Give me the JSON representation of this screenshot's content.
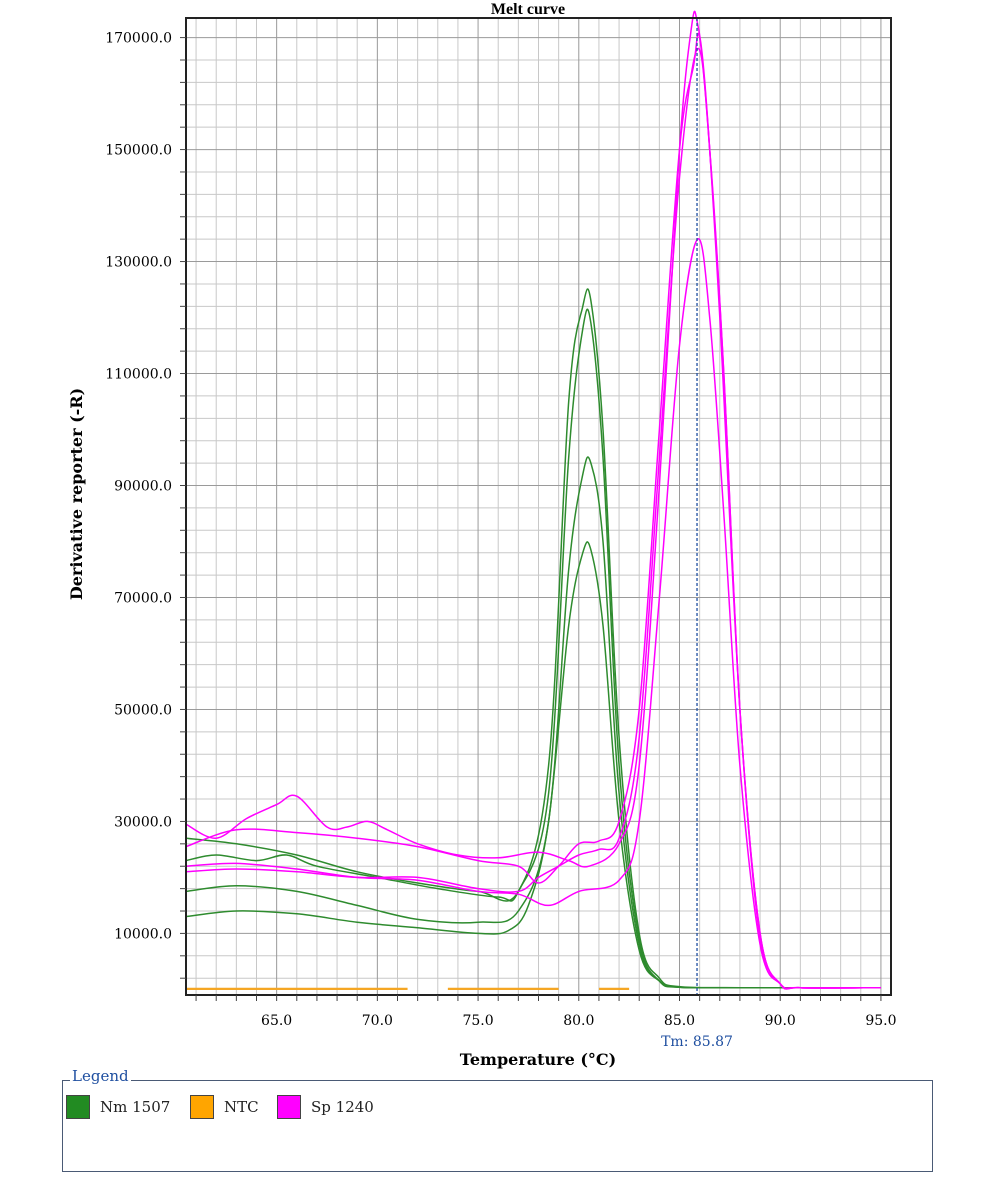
{
  "chart_data": {
    "type": "line",
    "title": "Melt curve",
    "xlabel": "Temperature (°C)",
    "ylabel": "Derivative reporter (-R)",
    "xlim": [
      60.5,
      95.5
    ],
    "ylim": [
      -1000,
      173500
    ],
    "x_ticks": [
      65,
      70,
      75,
      80,
      85,
      90,
      95
    ],
    "x_tick_labels": [
      "65.0",
      "70.0",
      "75.0",
      "80.0",
      "85.0",
      "90.0",
      "95.0"
    ],
    "y_ticks": [
      10000,
      30000,
      50000,
      70000,
      90000,
      110000,
      130000,
      150000,
      170000
    ],
    "y_tick_labels": [
      "10000.0",
      "30000.0",
      "50000.0",
      "70000.0",
      "90000.0",
      "110000.0",
      "130000.0",
      "150000.0",
      "170000.0"
    ],
    "grid": true,
    "threshold_marker": {
      "x": 85.87,
      "label": "Tm: 85.87",
      "color": "#1f4fa0"
    },
    "series": [
      {
        "name": "Nm 1507",
        "color": "#2e8b2e",
        "points": [
          [
            60.5,
            27000
          ],
          [
            63,
            26000
          ],
          [
            66,
            24000
          ],
          [
            69,
            21000
          ],
          [
            72,
            19000
          ],
          [
            75,
            17500
          ],
          [
            77,
            17500
          ],
          [
            78.5,
            40000
          ],
          [
            79.5,
            105000
          ],
          [
            80.2,
            122000
          ],
          [
            80.6,
            123000
          ],
          [
            81.2,
            100000
          ],
          [
            82,
            45000
          ],
          [
            83,
            10000
          ],
          [
            84,
            2000
          ],
          [
            85,
            500
          ],
          [
            88,
            300
          ],
          [
            95,
            300
          ]
        ]
      },
      {
        "name": "Nm 1507",
        "color": "#2e8b2e",
        "points": [
          [
            60.5,
            23000
          ],
          [
            62,
            24000
          ],
          [
            64,
            23000
          ],
          [
            65.5,
            24000
          ],
          [
            67,
            22000
          ],
          [
            70,
            20000
          ],
          [
            73,
            18000
          ],
          [
            76,
            16500
          ],
          [
            77,
            17500
          ],
          [
            78.5,
            35000
          ],
          [
            79.5,
            95000
          ],
          [
            80.2,
            118000
          ],
          [
            80.6,
            119000
          ],
          [
            81.2,
            95000
          ],
          [
            82,
            40000
          ],
          [
            83,
            9000
          ],
          [
            84,
            1500
          ],
          [
            85,
            400
          ],
          [
            88,
            300
          ],
          [
            95,
            300
          ]
        ]
      },
      {
        "name": "Nm 1507",
        "color": "#2e8b2e",
        "points": [
          [
            60.5,
            17500
          ],
          [
            63,
            18500
          ],
          [
            66,
            17500
          ],
          [
            69,
            15000
          ],
          [
            72,
            12500
          ],
          [
            75,
            12000
          ],
          [
            77,
            14000
          ],
          [
            78.5,
            30000
          ],
          [
            79.5,
            75000
          ],
          [
            80.2,
            92000
          ],
          [
            80.6,
            94000
          ],
          [
            81.2,
            80000
          ],
          [
            82,
            35000
          ],
          [
            83,
            8000
          ],
          [
            84,
            1500
          ],
          [
            85,
            400
          ],
          [
            88,
            300
          ],
          [
            95,
            300
          ]
        ]
      },
      {
        "name": "Nm 1507",
        "color": "#2e8b2e",
        "points": [
          [
            60.5,
            13000
          ],
          [
            63,
            14000
          ],
          [
            66,
            13500
          ],
          [
            69,
            12000
          ],
          [
            72,
            11000
          ],
          [
            75,
            10000
          ],
          [
            76.5,
            10500
          ],
          [
            77.5,
            15000
          ],
          [
            78.5,
            30000
          ],
          [
            79.5,
            65000
          ],
          [
            80.2,
            78000
          ],
          [
            80.6,
            78500
          ],
          [
            81.2,
            65000
          ],
          [
            82,
            30000
          ],
          [
            83,
            7000
          ],
          [
            84,
            1500
          ],
          [
            85,
            400
          ],
          [
            88,
            300
          ],
          [
            95,
            300
          ]
        ]
      },
      {
        "name": "NTC",
        "color": "#f5a623",
        "points": [
          [
            60.5,
            100
          ],
          [
            95,
            100
          ]
        ]
      },
      {
        "name": "Sp 1240",
        "color": "#ff00ff",
        "points": [
          [
            60.5,
            29500
          ],
          [
            62,
            27000
          ],
          [
            63.5,
            30500
          ],
          [
            65,
            33000
          ],
          [
            66,
            34500
          ],
          [
            67.5,
            29000
          ],
          [
            68.5,
            29000
          ],
          [
            69.5,
            30000
          ],
          [
            70.5,
            28500
          ],
          [
            72,
            26000
          ],
          [
            74,
            24000
          ],
          [
            76,
            23500
          ],
          [
            78,
            24500
          ],
          [
            79.5,
            23000
          ],
          [
            80.5,
            22000
          ],
          [
            82,
            26000
          ],
          [
            83,
            40000
          ],
          [
            84,
            90000
          ],
          [
            85,
            150000
          ],
          [
            85.6,
            172000
          ],
          [
            85.87,
            173000
          ],
          [
            86.3,
            160000
          ],
          [
            87,
            120000
          ],
          [
            88,
            50000
          ],
          [
            89,
            10000
          ],
          [
            90,
            1000
          ],
          [
            91,
            300
          ],
          [
            95,
            300
          ]
        ]
      },
      {
        "name": "Sp 1240",
        "color": "#ff00ff",
        "points": [
          [
            60.5,
            25500
          ],
          [
            63,
            28500
          ],
          [
            66,
            28000
          ],
          [
            69,
            27000
          ],
          [
            72,
            25500
          ],
          [
            75,
            23000
          ],
          [
            77,
            22000
          ],
          [
            78,
            19000
          ],
          [
            79,
            22000
          ],
          [
            80,
            26000
          ],
          [
            81,
            26500
          ],
          [
            82,
            30000
          ],
          [
            83,
            50000
          ],
          [
            84,
            100000
          ],
          [
            85,
            150000
          ],
          [
            85.7,
            165000
          ],
          [
            86,
            170000
          ],
          [
            86.5,
            150000
          ],
          [
            87.2,
            110000
          ],
          [
            88,
            50000
          ],
          [
            89,
            10000
          ],
          [
            90,
            1000
          ],
          [
            91,
            300
          ],
          [
            95,
            300
          ]
        ]
      },
      {
        "name": "Sp 1240",
        "color": "#ff00ff",
        "points": [
          [
            60.5,
            22000
          ],
          [
            63,
            22500
          ],
          [
            66,
            21500
          ],
          [
            69,
            20000
          ],
          [
            72,
            19500
          ],
          [
            75,
            17500
          ],
          [
            77,
            17000
          ],
          [
            78.5,
            15000
          ],
          [
            80,
            17500
          ],
          [
            82,
            19500
          ],
          [
            83,
            30000
          ],
          [
            84,
            70000
          ],
          [
            85,
            115000
          ],
          [
            85.9,
            134000
          ],
          [
            86.5,
            120000
          ],
          [
            87.2,
            85000
          ],
          [
            88,
            40000
          ],
          [
            89,
            8000
          ],
          [
            90,
            1000
          ],
          [
            91,
            300
          ],
          [
            95,
            300
          ]
        ]
      },
      {
        "name": "Sp 1240",
        "color": "#ff00ff",
        "points": [
          [
            60.5,
            21000
          ],
          [
            63,
            21500
          ],
          [
            66,
            21000
          ],
          [
            69,
            20000
          ],
          [
            72,
            20000
          ],
          [
            75,
            18000
          ],
          [
            77,
            17500
          ],
          [
            78,
            20000
          ],
          [
            79,
            22000
          ],
          [
            80,
            24000
          ],
          [
            81,
            25000
          ],
          [
            82,
            27000
          ],
          [
            83,
            45000
          ],
          [
            84,
            95000
          ],
          [
            85,
            145000
          ],
          [
            85.9,
            168000
          ],
          [
            86.5,
            150000
          ],
          [
            87.2,
            110000
          ],
          [
            88,
            50000
          ],
          [
            89,
            9000
          ],
          [
            90,
            1000
          ],
          [
            91,
            300
          ],
          [
            95,
            300
          ]
        ]
      }
    ],
    "ntc_segments": [
      [
        60.5,
        71.5
      ],
      [
        73.5,
        79.0
      ],
      [
        81.0,
        82.5
      ]
    ]
  },
  "legend": {
    "title": "Legend",
    "items": [
      {
        "label": "Nm 1507",
        "color": "#228b22"
      },
      {
        "label": "NTC",
        "color": "#ffa500"
      },
      {
        "label": "Sp 1240",
        "color": "#ff00ff"
      }
    ]
  }
}
